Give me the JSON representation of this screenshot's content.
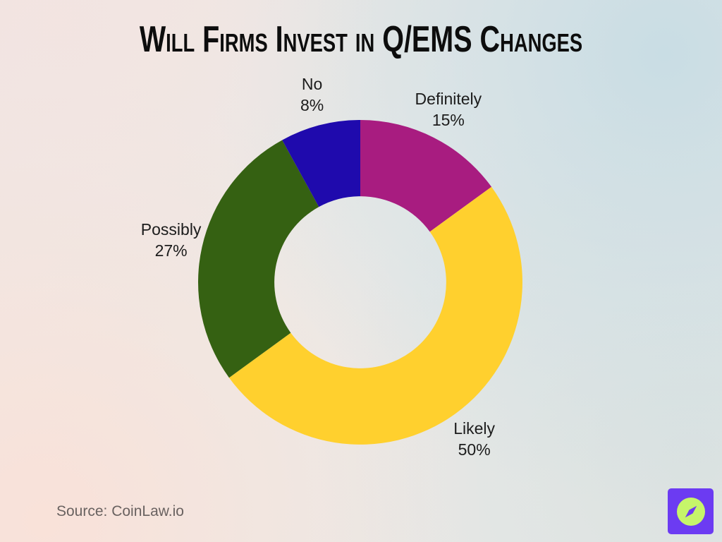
{
  "title": "Will Firms Invest in Q/EMS Changes",
  "source": "Source: CoinLaw.io",
  "logo": {
    "square_color": "#6C3BF2",
    "circle_color": "#C6F56A"
  },
  "chart_data": {
    "type": "pie",
    "style": "donut",
    "title": "Will Firms Invest in Q/EMS Changes",
    "direction": "clockwise",
    "start_angle_deg": 0,
    "inner_radius_ratio": 0.53,
    "label_format": "{label} {value}%",
    "segments": [
      {
        "label": "Definitely",
        "value": 15,
        "color": "#A81C80"
      },
      {
        "label": "Likely",
        "value": 50,
        "color": "#FFD02E"
      },
      {
        "label": "Possibly",
        "value": 27,
        "color": "#356112"
      },
      {
        "label": "No",
        "value": 8,
        "color": "#1F0AAD"
      }
    ]
  }
}
